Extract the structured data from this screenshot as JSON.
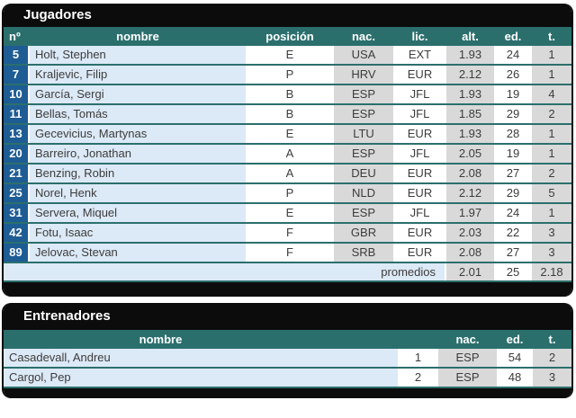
{
  "colors": {
    "teal": "#2b6f6d",
    "blue": "#1e5c94",
    "lightblue": "#dce9f6",
    "gray": "#d9d9d9",
    "black": "#0c0c0c",
    "text": "#3c3c3c"
  },
  "players_table": {
    "title": "Jugadores",
    "columns": [
      "nº",
      "nombre",
      "posición",
      "nac.",
      "lic.",
      "alt.",
      "ed.",
      "t."
    ],
    "rows": [
      {
        "num": "5",
        "name": "Holt, Stephen",
        "pos": "E",
        "nat": "USA",
        "lic": "EXT",
        "alt": "1.93",
        "ed": "24",
        "t": "1"
      },
      {
        "num": "7",
        "name": "Kraljevic, Filip",
        "pos": "P",
        "nat": "HRV",
        "lic": "EUR",
        "alt": "2.12",
        "ed": "26",
        "t": "1"
      },
      {
        "num": "10",
        "name": "García, Sergi",
        "pos": "B",
        "nat": "ESP",
        "lic": "JFL",
        "alt": "1.93",
        "ed": "19",
        "t": "4"
      },
      {
        "num": "11",
        "name": "Bellas, Tomás",
        "pos": "B",
        "nat": "ESP",
        "lic": "JFL",
        "alt": "1.85",
        "ed": "29",
        "t": "2"
      },
      {
        "num": "13",
        "name": "Gecevicius, Martynas",
        "pos": "E",
        "nat": "LTU",
        "lic": "EUR",
        "alt": "1.93",
        "ed": "28",
        "t": "1"
      },
      {
        "num": "20",
        "name": "Barreiro, Jonathan",
        "pos": "A",
        "nat": "ESP",
        "lic": "JFL",
        "alt": "2.05",
        "ed": "19",
        "t": "1"
      },
      {
        "num": "21",
        "name": "Benzing, Robin",
        "pos": "A",
        "nat": "DEU",
        "lic": "EUR",
        "alt": "2.08",
        "ed": "27",
        "t": "2"
      },
      {
        "num": "25",
        "name": "Norel, Henk",
        "pos": "P",
        "nat": "NLD",
        "lic": "EUR",
        "alt": "2.12",
        "ed": "29",
        "t": "5"
      },
      {
        "num": "31",
        "name": "Servera, Miquel",
        "pos": "E",
        "nat": "ESP",
        "lic": "JFL",
        "alt": "1.97",
        "ed": "24",
        "t": "1"
      },
      {
        "num": "42",
        "name": "Fotu, Isaac",
        "pos": "F",
        "nat": "GBR",
        "lic": "EUR",
        "alt": "2.03",
        "ed": "22",
        "t": "3"
      },
      {
        "num": "89",
        "name": "Jelovac, Stevan",
        "pos": "F",
        "nat": "SRB",
        "lic": "EUR",
        "alt": "2.08",
        "ed": "27",
        "t": "3"
      }
    ],
    "footer": {
      "label": "promedios",
      "alt": "2.01",
      "ed": "25",
      "t": "2.18"
    }
  },
  "coaches_table": {
    "title": "Entrenadores",
    "columns": [
      "nombre",
      "nac.",
      "ed.",
      "t."
    ],
    "rows": [
      {
        "name": "Casadevall, Andreu",
        "num": "1",
        "nat": "ESP",
        "ed": "54",
        "t": "2"
      },
      {
        "name": "Cargol, Pep",
        "num": "2",
        "nat": "ESP",
        "ed": "48",
        "t": "3"
      }
    ]
  }
}
